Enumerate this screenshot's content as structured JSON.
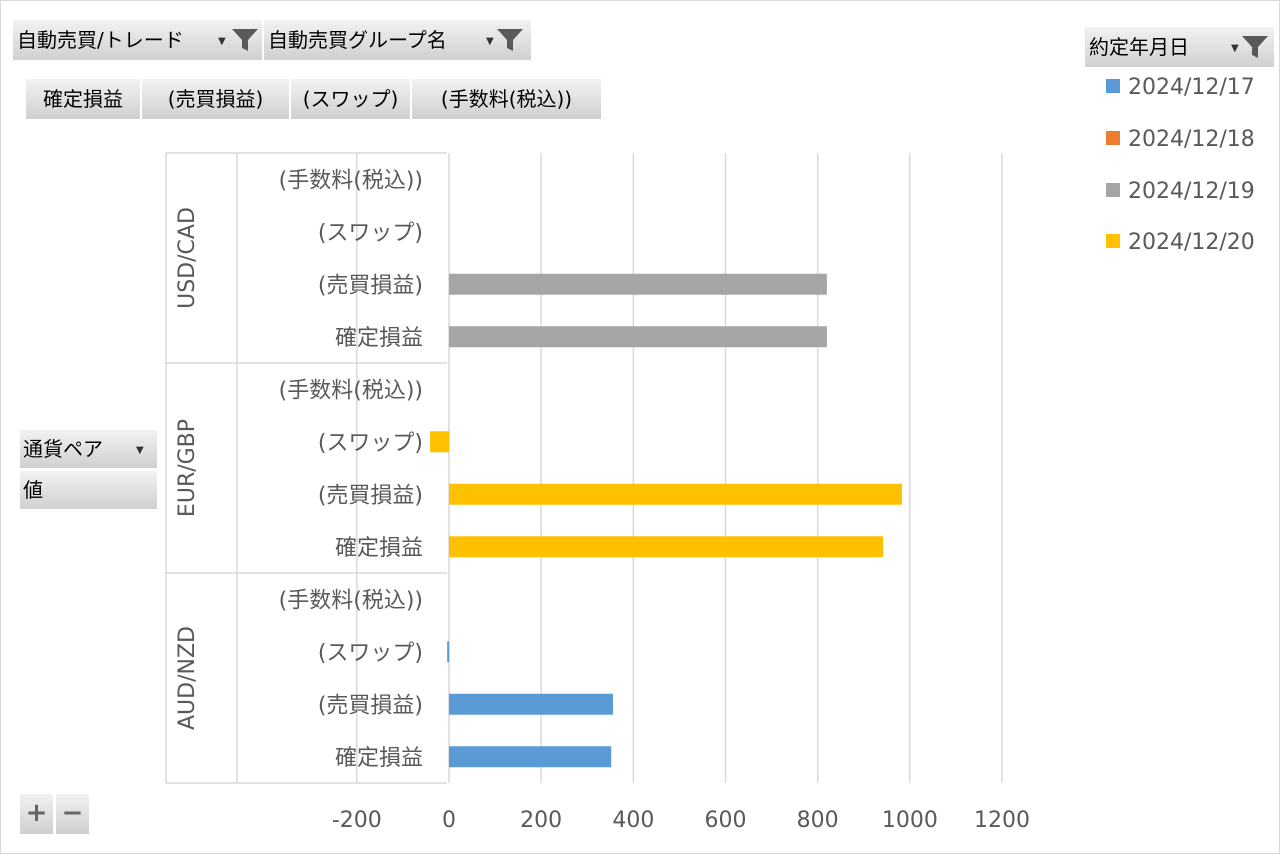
{
  "filters": {
    "trade_label": "自動売買/トレード",
    "group_label": "自動売買グループ名",
    "date_label": "約定年月日"
  },
  "value_fields": [
    "確定損益",
    "(売買損益)",
    "(スワップ)",
    "(手数料(税込))"
  ],
  "row_fields": {
    "pair_label": "通貨ペア",
    "value_label": "値"
  },
  "controls": {
    "plus": "+",
    "minus": "−"
  },
  "colors": {
    "blue": "#5b9bd5",
    "orange": "#ed7d31",
    "gray": "#a5a5a5",
    "gold": "#ffc000"
  },
  "chart_data": {
    "type": "bar",
    "orientation": "horizontal",
    "groups": [
      {
        "name": "AUD/NZD",
        "categories": [
          "確定損益",
          "(売買損益)",
          "(スワップ)",
          "(手数料(税込))"
        ]
      },
      {
        "name": "EUR/GBP",
        "categories": [
          "確定損益",
          "(売買損益)",
          "(スワップ)",
          "(手数料(税込))"
        ]
      },
      {
        "name": "USD/CAD",
        "categories": [
          "確定損益",
          "(売買損益)",
          "(スワップ)",
          "(手数料(税込))"
        ]
      }
    ],
    "series": [
      {
        "name": "2024/12/17",
        "color": "#5b9bd5",
        "values": [
          352,
          356,
          -4,
          0,
          null,
          null,
          null,
          null,
          null,
          null,
          null,
          null
        ]
      },
      {
        "name": "2024/12/18",
        "color": "#ed7d31",
        "values": [
          null,
          null,
          null,
          null,
          null,
          null,
          null,
          null,
          null,
          null,
          null,
          null
        ]
      },
      {
        "name": "2024/12/19",
        "color": "#a5a5a5",
        "values": [
          null,
          null,
          null,
          null,
          null,
          null,
          null,
          null,
          820,
          820,
          0,
          0
        ]
      },
      {
        "name": "2024/12/20",
        "color": "#ffc000",
        "values": [
          null,
          null,
          null,
          null,
          942,
          983,
          -41,
          0,
          null,
          null,
          null,
          null
        ]
      }
    ],
    "xlim": [
      -200,
      1200
    ],
    "x_ticks": [
      "-200",
      "0",
      "200",
      "400",
      "600",
      "800",
      "1000",
      "1200"
    ],
    "grid": true,
    "legend_position": "right"
  }
}
